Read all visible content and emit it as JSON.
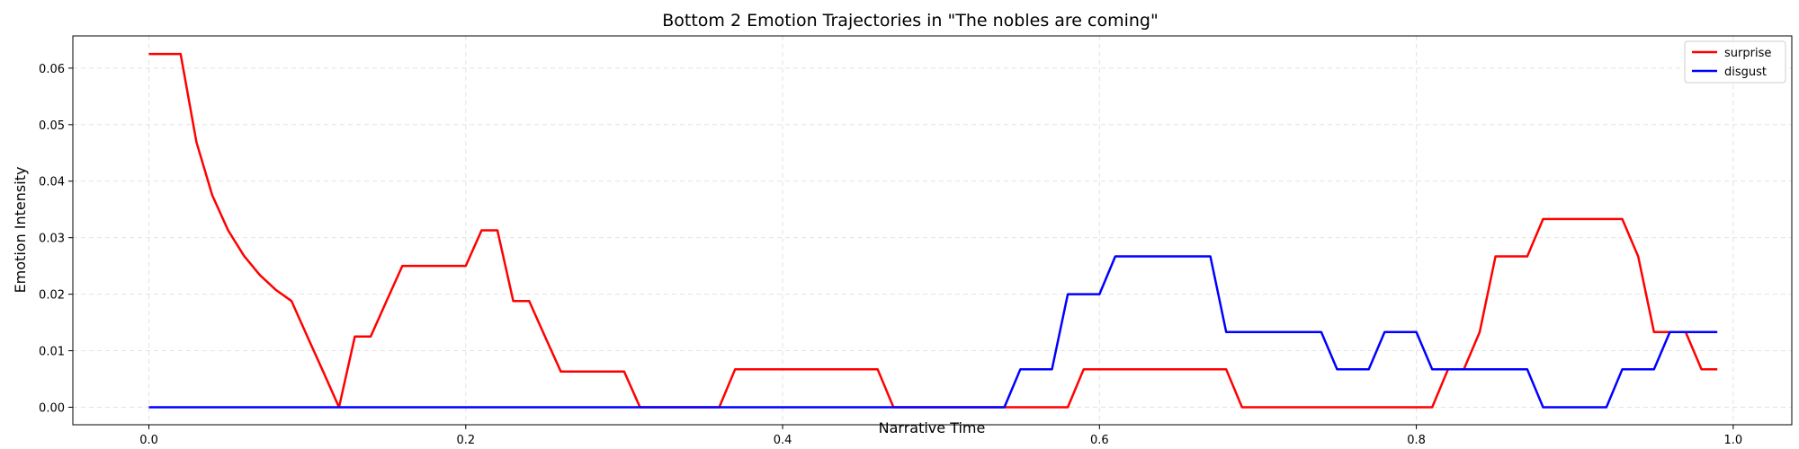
{
  "chart_data": {
    "type": "line",
    "title": "Bottom 2 Emotion Trajectories in \"The nobles are coming\"",
    "xlabel": "Narrative Time",
    "ylabel": "Emotion Intensity",
    "xlim": [
      -0.048,
      1.037
    ],
    "ylim": [
      -0.0031,
      0.0657
    ],
    "xticks": [
      0.0,
      0.2,
      0.4,
      0.6,
      0.8,
      1.0
    ],
    "xtick_labels": [
      "0.0",
      "0.2",
      "0.4",
      "0.6",
      "0.8",
      "1.0"
    ],
    "yticks": [
      0.0,
      0.01,
      0.02,
      0.03,
      0.04,
      0.05,
      0.06
    ],
    "ytick_labels": [
      "0.00",
      "0.01",
      "0.02",
      "0.03",
      "0.04",
      "0.05",
      "0.06"
    ],
    "grid": true,
    "legend_position": "top-right",
    "x": [
      0.0,
      0.01,
      0.02,
      0.03,
      0.04,
      0.05,
      0.06,
      0.07,
      0.08,
      0.09,
      0.1,
      0.11,
      0.12,
      0.13,
      0.14,
      0.15,
      0.16,
      0.17,
      0.18,
      0.19,
      0.2,
      0.21,
      0.22,
      0.23,
      0.24,
      0.25,
      0.26,
      0.27,
      0.28,
      0.29,
      0.3,
      0.31,
      0.32,
      0.33,
      0.34,
      0.35,
      0.36,
      0.37,
      0.38,
      0.39,
      0.4,
      0.41,
      0.42,
      0.43,
      0.44,
      0.45,
      0.46,
      0.47,
      0.48,
      0.49,
      0.5,
      0.51,
      0.52,
      0.53,
      0.54,
      0.55,
      0.56,
      0.57,
      0.58,
      0.59,
      0.6,
      0.61,
      0.62,
      0.63,
      0.64,
      0.65,
      0.66,
      0.67,
      0.68,
      0.69,
      0.7,
      0.71,
      0.72,
      0.73,
      0.74,
      0.75,
      0.76,
      0.77,
      0.78,
      0.79,
      0.8,
      0.81,
      0.82,
      0.83,
      0.84,
      0.85,
      0.86,
      0.87,
      0.88,
      0.89,
      0.9,
      0.91,
      0.92,
      0.93,
      0.94,
      0.95,
      0.96,
      0.97,
      0.98,
      0.99
    ],
    "series": [
      {
        "name": "surprise",
        "color": "#ff0000",
        "values": [
          0.0625,
          0.0625,
          0.0625,
          0.0469,
          0.0375,
          0.0313,
          0.0268,
          0.0234,
          0.0208,
          0.0188,
          0.0125,
          0.0063,
          0.0,
          0.0125,
          0.0125,
          0.0188,
          0.025,
          0.025,
          0.025,
          0.025,
          0.025,
          0.0313,
          0.0313,
          0.0188,
          0.0188,
          0.0125,
          0.0063,
          0.0063,
          0.0063,
          0.0063,
          0.0063,
          0.0,
          0.0,
          0.0,
          0.0,
          0.0,
          0.0,
          0.0067,
          0.0067,
          0.0067,
          0.0067,
          0.0067,
          0.0067,
          0.0067,
          0.0067,
          0.0067,
          0.0067,
          0.0,
          0.0,
          0.0,
          0.0,
          0.0,
          0.0,
          0.0,
          0.0,
          0.0,
          0.0,
          0.0,
          0.0,
          0.0067,
          0.0067,
          0.0067,
          0.0067,
          0.0067,
          0.0067,
          0.0067,
          0.0067,
          0.0067,
          0.0067,
          0.0,
          0.0,
          0.0,
          0.0,
          0.0,
          0.0,
          0.0,
          0.0,
          0.0,
          0.0,
          0.0,
          0.0,
          0.0,
          0.0067,
          0.0067,
          0.0133,
          0.0267,
          0.0267,
          0.0267,
          0.0333,
          0.0333,
          0.0333,
          0.0333,
          0.0333,
          0.0333,
          0.0267,
          0.0133,
          0.0133,
          0.0133,
          0.0067,
          0.0067
        ]
      },
      {
        "name": "disgust",
        "color": "#0000ff",
        "values": [
          0.0,
          0.0,
          0.0,
          0.0,
          0.0,
          0.0,
          0.0,
          0.0,
          0.0,
          0.0,
          0.0,
          0.0,
          0.0,
          0.0,
          0.0,
          0.0,
          0.0,
          0.0,
          0.0,
          0.0,
          0.0,
          0.0,
          0.0,
          0.0,
          0.0,
          0.0,
          0.0,
          0.0,
          0.0,
          0.0,
          0.0,
          0.0,
          0.0,
          0.0,
          0.0,
          0.0,
          0.0,
          0.0,
          0.0,
          0.0,
          0.0,
          0.0,
          0.0,
          0.0,
          0.0,
          0.0,
          0.0,
          0.0,
          0.0,
          0.0,
          0.0,
          0.0,
          0.0,
          0.0,
          0.0,
          0.0067,
          0.0067,
          0.0067,
          0.02,
          0.02,
          0.02,
          0.0267,
          0.0267,
          0.0267,
          0.0267,
          0.0267,
          0.0267,
          0.0267,
          0.0133,
          0.0133,
          0.0133,
          0.0133,
          0.0133,
          0.0133,
          0.0133,
          0.0067,
          0.0067,
          0.0067,
          0.0133,
          0.0133,
          0.0133,
          0.0067,
          0.0067,
          0.0067,
          0.0067,
          0.0067,
          0.0067,
          0.0067,
          0.0,
          0.0,
          0.0,
          0.0,
          0.0,
          0.0067,
          0.0067,
          0.0067,
          0.0133,
          0.0133,
          0.0133,
          0.0133
        ]
      }
    ]
  }
}
